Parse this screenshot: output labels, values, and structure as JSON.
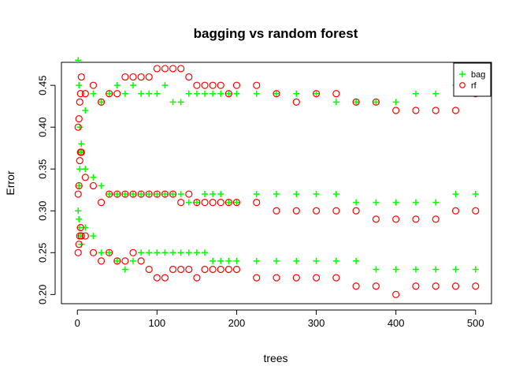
{
  "chart_data": {
    "type": "scatter",
    "title": "bagging vs random forest",
    "xlabel": "trees",
    "ylabel": "Error",
    "xlim": [
      -20,
      520
    ],
    "ylim": [
      0.189,
      0.4775
    ],
    "x_ticks": [
      0,
      100,
      200,
      300,
      400,
      500
    ],
    "x_tick_labels": [
      "0",
      "100",
      "200",
      "300",
      "400",
      "500"
    ],
    "y_ticks": [
      0.2,
      0.25,
      0.3,
      0.35,
      0.4,
      0.45
    ],
    "y_tick_labels": [
      "0.20",
      "0.25",
      "0.30",
      "0.35",
      "0.40",
      "0.45"
    ],
    "grid": false,
    "legend_position": "top-right",
    "legend": [
      {
        "label": "bag",
        "color": "#00ff00",
        "marker": "plus"
      },
      {
        "label": "rf",
        "color": "#ff0000",
        "marker": "circle"
      }
    ],
    "x": [
      1,
      2,
      3,
      4,
      5,
      10,
      20,
      30,
      40,
      50,
      60,
      70,
      80,
      90,
      100,
      110,
      120,
      130,
      140,
      150,
      160,
      170,
      180,
      190,
      200,
      225,
      250,
      275,
      300,
      325,
      350,
      375,
      400,
      425,
      450,
      475,
      500
    ],
    "series": [
      {
        "name": "bag",
        "group": "upper",
        "color": "#00ff00",
        "marker": "plus",
        "values": [
          0.48,
          0.45,
          0.4,
          0.37,
          0.38,
          0.42,
          0.44,
          0.43,
          0.44,
          0.45,
          0.44,
          0.45,
          0.44,
          0.44,
          0.44,
          0.45,
          0.43,
          0.43,
          0.44,
          0.44,
          0.44,
          0.44,
          0.44,
          0.44,
          0.44,
          0.44,
          0.44,
          0.44,
          0.44,
          0.43,
          0.43,
          0.43,
          0.43,
          0.44,
          0.44,
          0.45,
          0.45
        ]
      },
      {
        "name": "rf",
        "group": "upper",
        "color": "#ff0000",
        "marker": "circle",
        "values": [
          0.4,
          0.41,
          0.43,
          0.44,
          0.46,
          0.44,
          0.45,
          0.43,
          0.44,
          0.44,
          0.46,
          0.46,
          0.46,
          0.46,
          0.47,
          0.47,
          0.47,
          0.47,
          0.46,
          0.45,
          0.45,
          0.45,
          0.45,
          0.44,
          0.45,
          0.45,
          0.44,
          0.43,
          0.44,
          0.44,
          0.43,
          0.43,
          0.42,
          0.42,
          0.42,
          0.42,
          0.44
        ]
      },
      {
        "name": "bag",
        "group": "middle",
        "color": "#00ff00",
        "marker": "plus",
        "values": [
          0.3,
          0.33,
          0.35,
          0.37,
          0.37,
          0.35,
          0.34,
          0.33,
          0.32,
          0.32,
          0.32,
          0.32,
          0.32,
          0.32,
          0.32,
          0.32,
          0.32,
          0.32,
          0.31,
          0.31,
          0.32,
          0.32,
          0.32,
          0.31,
          0.31,
          0.32,
          0.32,
          0.32,
          0.32,
          0.32,
          0.31,
          0.31,
          0.31,
          0.31,
          0.31,
          0.32,
          0.32
        ]
      },
      {
        "name": "rf",
        "group": "middle",
        "color": "#ff0000",
        "marker": "circle",
        "values": [
          0.32,
          0.33,
          0.36,
          0.37,
          0.37,
          0.34,
          0.33,
          0.31,
          0.32,
          0.32,
          0.32,
          0.32,
          0.32,
          0.32,
          0.32,
          0.32,
          0.32,
          0.31,
          0.32,
          0.31,
          0.31,
          0.31,
          0.31,
          0.31,
          0.31,
          0.31,
          0.3,
          0.3,
          0.3,
          0.3,
          0.3,
          0.29,
          0.29,
          0.29,
          0.29,
          0.3,
          0.3
        ]
      },
      {
        "name": "bag",
        "group": "lower",
        "color": "#00ff00",
        "marker": "plus",
        "values": [
          0.3,
          0.29,
          0.28,
          0.27,
          0.26,
          0.28,
          0.27,
          0.25,
          0.25,
          0.24,
          0.23,
          0.24,
          0.25,
          0.25,
          0.25,
          0.25,
          0.25,
          0.25,
          0.25,
          0.25,
          0.25,
          0.24,
          0.24,
          0.24,
          0.24,
          0.24,
          0.24,
          0.24,
          0.24,
          0.24,
          0.24,
          0.23,
          0.23,
          0.23,
          0.23,
          0.23,
          0.23
        ]
      },
      {
        "name": "rf",
        "group": "lower",
        "color": "#ff0000",
        "marker": "circle",
        "values": [
          0.25,
          0.26,
          0.27,
          0.28,
          0.27,
          0.27,
          0.25,
          0.24,
          0.25,
          0.24,
          0.24,
          0.25,
          0.24,
          0.23,
          0.22,
          0.22,
          0.23,
          0.23,
          0.23,
          0.22,
          0.23,
          0.23,
          0.23,
          0.23,
          0.23,
          0.22,
          0.22,
          0.22,
          0.22,
          0.22,
          0.21,
          0.21,
          0.2,
          0.21,
          0.21,
          0.21,
          0.21
        ]
      }
    ]
  }
}
